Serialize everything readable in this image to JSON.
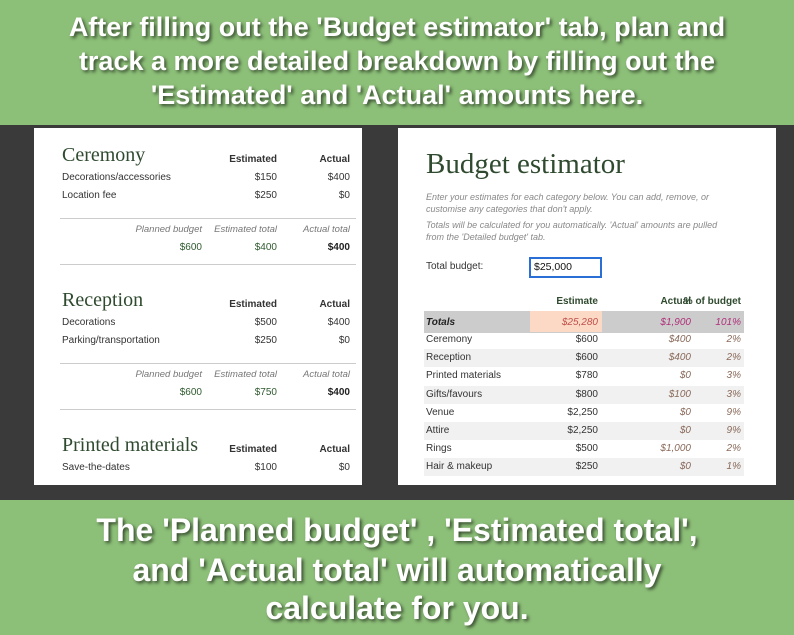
{
  "header": {
    "lines": [
      "After filling out the 'Budget estimator' tab, plan and",
      "track a more detailed breakdown by filling out the",
      "'Estimated' and 'Actual' amounts here."
    ]
  },
  "footer": {
    "lines": [
      "The 'Planned budget' , 'Estimated total',",
      "and 'Actual total' will automatically",
      "calculate for you."
    ]
  },
  "detailed": {
    "sections": [
      {
        "title": "Ceremony",
        "columns": [
          "Estimated",
          "Actual"
        ],
        "rows": [
          [
            "Decorations/accessories",
            "$150",
            "$400"
          ],
          [
            "Location fee",
            "$250",
            "$0"
          ]
        ],
        "summary_labels": [
          "Planned budget",
          "Estimated total",
          "Actual total"
        ],
        "summary_values": [
          "$600",
          "$400",
          "$400"
        ]
      },
      {
        "title": "Reception",
        "columns": [
          "Estimated",
          "Actual"
        ],
        "rows": [
          [
            "Decorations",
            "$500",
            "$400"
          ],
          [
            "Parking/transportation",
            "$250",
            "$0"
          ]
        ],
        "summary_labels": [
          "Planned budget",
          "Estimated total",
          "Actual total"
        ],
        "summary_values": [
          "$600",
          "$750",
          "$400"
        ]
      },
      {
        "title": "Printed materials",
        "columns": [
          "Estimated",
          "Actual"
        ],
        "rows": [
          [
            "Save-the-dates",
            "$100",
            "$0"
          ]
        ]
      }
    ]
  },
  "estimator": {
    "title": "Budget estimator",
    "description": [
      "Enter your estimates for each category below. You can add, remove, or",
      "customise any categories that don't apply.",
      "Totals will be calculated for you automatically. 'Actual' amounts are pulled",
      "from the 'Detailed budget' tab."
    ],
    "total_label": "Total budget:",
    "total_value": "$25,000",
    "columns": [
      "Estimate",
      "Actual",
      "% of budget"
    ],
    "totals": [
      "Totals",
      "$25,280",
      "$1,900",
      "101%"
    ],
    "rows": [
      [
        "Ceremony",
        "$600",
        "$400",
        "2%"
      ],
      [
        "Reception",
        "$600",
        "$400",
        "2%"
      ],
      [
        "Printed materials",
        "$780",
        "$0",
        "3%"
      ],
      [
        "Gifts/favours",
        "$800",
        "$100",
        "3%"
      ],
      [
        "Venue",
        "$2,250",
        "$0",
        "9%"
      ],
      [
        "Attire",
        "$2,250",
        "$0",
        "9%"
      ],
      [
        "Rings",
        "$500",
        "$1,000",
        "2%"
      ],
      [
        "Hair & makeup",
        "$250",
        "$0",
        "1%"
      ]
    ]
  }
}
